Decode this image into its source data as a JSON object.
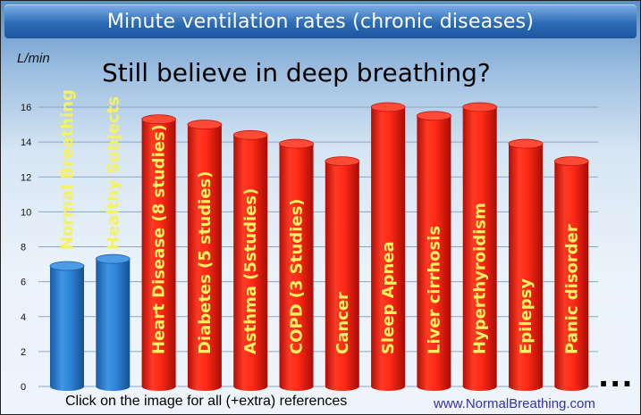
{
  "header": {
    "title": "Minute ventilation rates (chronic diseases)",
    "subtitle": "Still believe in deep breathing?"
  },
  "footer": {
    "note": "Click on the image for all (+extra) references",
    "url": "www.NormalBreathing.com",
    "ellipsis": "..."
  },
  "colors": {
    "blue": "#2c7fd1",
    "red": "#ef1d12",
    "label_yellow": "#f4f260"
  },
  "chart_data": {
    "type": "bar",
    "title": "Minute ventilation rates (chronic diseases)",
    "ylabel": "L/min",
    "xlabel": "",
    "ylim": [
      0,
      16
    ],
    "yticks": [
      0,
      2,
      4,
      6,
      8,
      10,
      12,
      14,
      16
    ],
    "grid": true,
    "categories": [
      "Normal Breathing",
      "Healthy Subjects",
      "Heart Disease (8 studies)",
      "Diabetes (5 studies)",
      "Asthma (5studies)",
      "COPD (3 Studies)",
      "Cancer",
      "Sleep Apnea",
      "Liver cirrhosis",
      "Hyperthyroidism",
      "Epilepsy",
      "Panic disorder"
    ],
    "values": [
      6.9,
      7.3,
      15.3,
      15.0,
      14.4,
      13.9,
      12.9,
      16.0,
      15.5,
      16.0,
      13.9,
      12.9
    ],
    "bar_colors": [
      "blue",
      "blue",
      "red",
      "red",
      "red",
      "red",
      "red",
      "red",
      "red",
      "red",
      "red",
      "red"
    ],
    "label_colors": [
      "label_yellow",
      "label_yellow",
      "label_yellow",
      "label_yellow",
      "label_yellow",
      "label_yellow",
      "label_yellow",
      "label_yellow",
      "label_yellow",
      "label_yellow",
      "label_yellow",
      "label_yellow"
    ]
  }
}
